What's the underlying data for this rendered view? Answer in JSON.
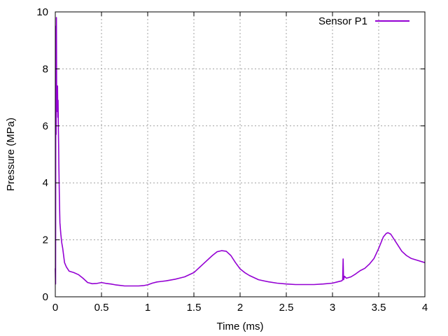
{
  "chart_data": {
    "type": "line",
    "title": "",
    "xlabel": "Time (ms)",
    "ylabel": "Pressure (MPa)",
    "xlim": [
      0,
      4
    ],
    "ylim": [
      0,
      10
    ],
    "x_ticks": [
      0,
      0.5,
      1,
      1.5,
      2,
      2.5,
      3,
      3.5,
      4
    ],
    "x_tick_labels": [
      "0",
      "0.5",
      "1",
      "1.5",
      "2",
      "2.5",
      "3",
      "3.5",
      "4"
    ],
    "y_ticks": [
      0,
      2,
      4,
      6,
      8,
      10
    ],
    "y_tick_labels": [
      "0",
      "2",
      "4",
      "6",
      "8",
      "10"
    ],
    "grid": true,
    "legend_position": "top-right",
    "series": [
      {
        "name": "Sensor P1",
        "color": "#9400d3",
        "x": [
          0,
          0.003,
          0.006,
          0.009,
          0.012,
          0.015,
          0.018,
          0.021,
          0.024,
          0.027,
          0.03,
          0.033,
          0.036,
          0.039,
          0.042,
          0.045,
          0.05,
          0.06,
          0.07,
          0.08,
          0.09,
          0.1,
          0.12,
          0.15,
          0.2,
          0.25,
          0.3,
          0.35,
          0.4,
          0.45,
          0.5,
          0.55,
          0.6,
          0.65,
          0.7,
          0.75,
          0.8,
          0.85,
          0.9,
          0.95,
          1.0,
          1.05,
          1.1,
          1.15,
          1.2,
          1.3,
          1.4,
          1.5,
          1.6,
          1.7,
          1.75,
          1.8,
          1.85,
          1.9,
          1.95,
          2.0,
          2.05,
          2.1,
          2.2,
          2.3,
          2.4,
          2.5,
          2.6,
          2.7,
          2.8,
          2.9,
          3.0,
          3.05,
          3.1,
          3.11,
          3.115,
          3.12,
          3.13,
          3.15,
          3.2,
          3.25,
          3.3,
          3.35,
          3.4,
          3.45,
          3.5,
          3.55,
          3.58,
          3.6,
          3.63,
          3.65,
          3.7,
          3.75,
          3.8,
          3.85,
          3.9,
          4.0
        ],
        "values": [
          1.0,
          0.45,
          9.5,
          5.7,
          9.8,
          6.5,
          7.4,
          6.8,
          7.4,
          6.3,
          6.9,
          5.9,
          5.3,
          4.6,
          4.0,
          3.4,
          2.6,
          2.2,
          1.9,
          1.7,
          1.45,
          1.2,
          1.05,
          0.9,
          0.85,
          0.78,
          0.65,
          0.5,
          0.46,
          0.47,
          0.5,
          0.47,
          0.45,
          0.42,
          0.4,
          0.38,
          0.38,
          0.38,
          0.38,
          0.39,
          0.42,
          0.48,
          0.52,
          0.54,
          0.56,
          0.62,
          0.7,
          0.85,
          1.15,
          1.45,
          1.58,
          1.62,
          1.6,
          1.45,
          1.2,
          0.98,
          0.85,
          0.75,
          0.6,
          0.53,
          0.48,
          0.45,
          0.43,
          0.43,
          0.43,
          0.45,
          0.48,
          0.52,
          0.56,
          0.6,
          1.33,
          0.6,
          0.72,
          0.65,
          0.7,
          0.8,
          0.92,
          1.0,
          1.15,
          1.35,
          1.7,
          2.1,
          2.22,
          2.25,
          2.2,
          2.1,
          1.85,
          1.6,
          1.45,
          1.35,
          1.3,
          1.2
        ]
      }
    ]
  }
}
